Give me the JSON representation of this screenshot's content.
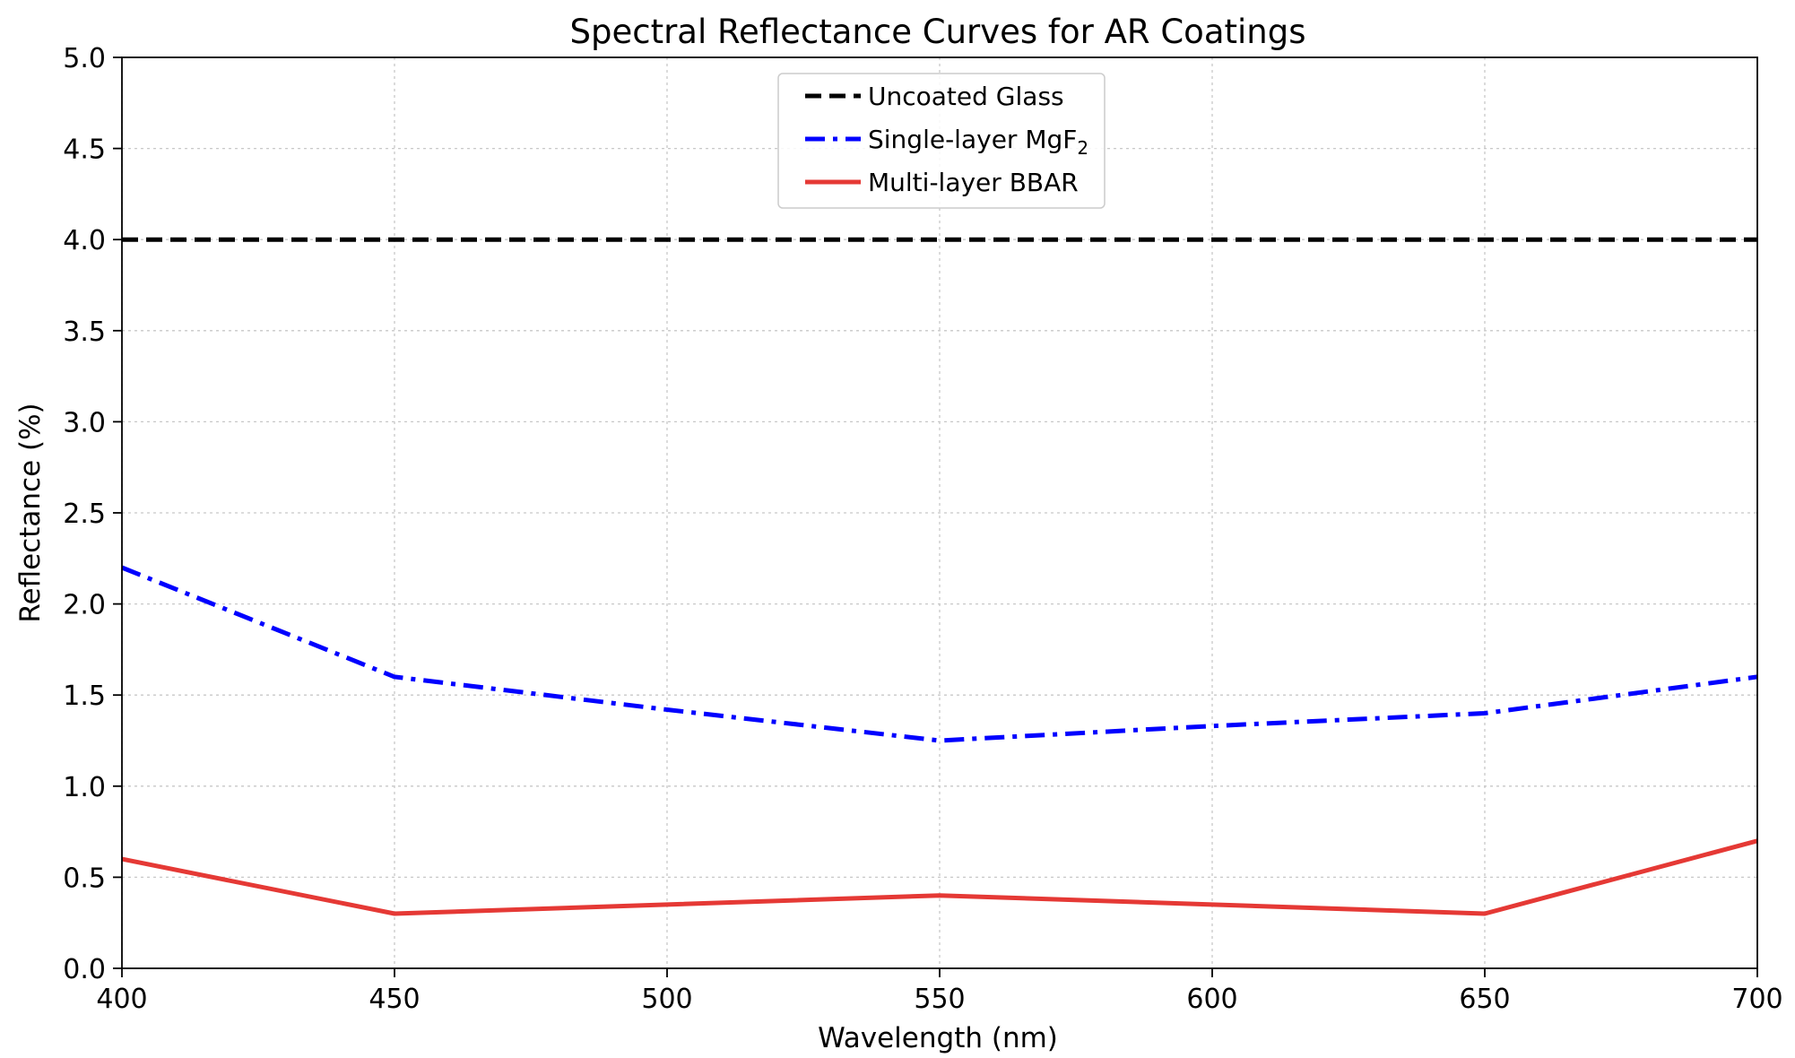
{
  "chart_data": {
    "type": "line",
    "title": "Spectral Reflectance Curves for AR Coatings",
    "xlabel": "Wavelength (nm)",
    "ylabel": "Reflectance (%)",
    "xlim": [
      400,
      700
    ],
    "ylim": [
      0,
      5
    ],
    "xticks": [
      "400",
      "450",
      "500",
      "550",
      "600",
      "650",
      "700"
    ],
    "yticks": [
      "0.0",
      "0.5",
      "1.0",
      "1.5",
      "2.0",
      "2.5",
      "3.0",
      "3.5",
      "4.0",
      "4.5",
      "5.0"
    ],
    "grid": true,
    "legend_position": "top-center",
    "series": [
      {
        "name": "Uncoated Glass",
        "name_sub": "",
        "color": "#000000",
        "style": "dashed",
        "x": [
          400,
          450,
          500,
          550,
          600,
          650,
          700
        ],
        "y": [
          4.0,
          4.0,
          4.0,
          4.0,
          4.0,
          4.0,
          4.0
        ]
      },
      {
        "name": "Single-layer MgF",
        "name_sub": "2",
        "color": "#0000ff",
        "style": "dashdot",
        "x": [
          400,
          450,
          500,
          550,
          600,
          650,
          700
        ],
        "y": [
          2.2,
          1.6,
          1.42,
          1.25,
          1.33,
          1.4,
          1.6
        ]
      },
      {
        "name": "Multi-layer BBAR",
        "name_sub": "",
        "color": "#e53935",
        "style": "solid",
        "x": [
          400,
          450,
          500,
          550,
          600,
          650,
          700
        ],
        "y": [
          0.6,
          0.3,
          0.35,
          0.4,
          0.35,
          0.3,
          0.7
        ]
      }
    ]
  }
}
